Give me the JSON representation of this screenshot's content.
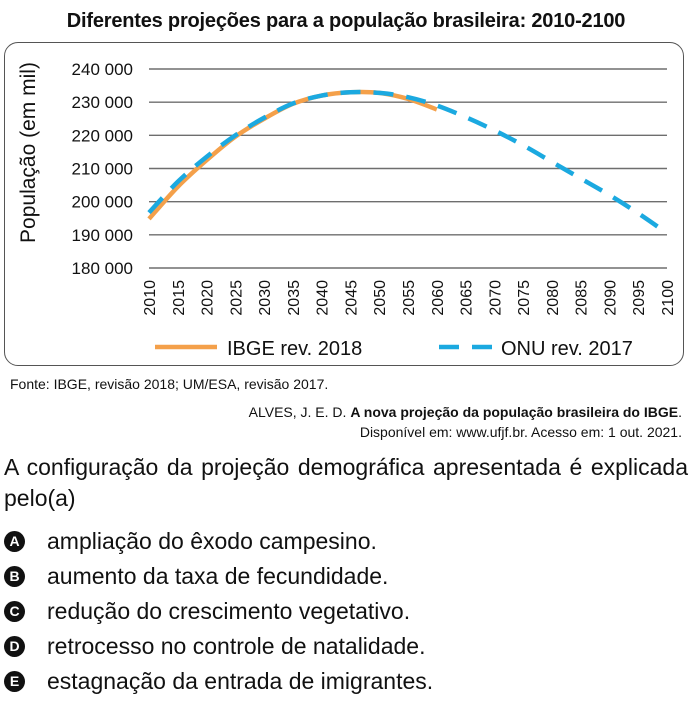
{
  "chart_data": {
    "type": "line",
    "title": "Diferentes projeções para a população brasileira: 2010-2100",
    "ylabel": "População (em mil)",
    "xlabel": "",
    "ylim": [
      180000,
      240000
    ],
    "yticks": [
      180000,
      190000,
      200000,
      210000,
      220000,
      230000,
      240000
    ],
    "ytick_labels": [
      "180 000",
      "190 000",
      "200 000",
      "210 000",
      "220 000",
      "230 000",
      "240 000"
    ],
    "xticks": [
      2010,
      2015,
      2020,
      2025,
      2030,
      2035,
      2040,
      2045,
      2050,
      2055,
      2060,
      2065,
      2070,
      2075,
      2080,
      2085,
      2090,
      2095,
      2100
    ],
    "grid": "horizontal",
    "legend_position": "bottom",
    "series": [
      {
        "name": "IBGE rev. 2018",
        "color": "#F4A04A",
        "style": "solid",
        "x": [
          2010,
          2015,
          2020,
          2025,
          2030,
          2035,
          2040,
          2045,
          2050,
          2055,
          2060
        ],
        "y": [
          194800,
          204500,
          212500,
          219600,
          225000,
          229500,
          232000,
          233000,
          232800,
          231000,
          227800
        ]
      },
      {
        "name": "ONU rev. 2017",
        "color": "#1BA9E0",
        "style": "dashed",
        "x": [
          2010,
          2015,
          2020,
          2025,
          2030,
          2035,
          2040,
          2045,
          2050,
          2055,
          2060,
          2065,
          2070,
          2075,
          2080,
          2085,
          2090,
          2095,
          2100
        ],
        "y": [
          196700,
          206000,
          213500,
          220000,
          225300,
          229600,
          232000,
          233000,
          232800,
          231500,
          229000,
          225500,
          221500,
          217000,
          212000,
          207000,
          202000,
          196500,
          190500
        ]
      }
    ]
  },
  "source": "Fonte: IBGE, revisão 2018; UM/ESA, revisão 2017.",
  "citation": {
    "author": "ALVES, J. E. D. ",
    "work": "A nova projeção da população brasileira do IBGE",
    "end": ".",
    "available": "Disponível em: www.ufjf.br. Acesso em: 1 out. 2021."
  },
  "question": "A configuração da projeção demográfica apresentada é explicada pelo(a)",
  "options": [
    {
      "letter": "A",
      "text": "ampliação do êxodo campesino."
    },
    {
      "letter": "B",
      "text": "aumento da taxa de fecundidade."
    },
    {
      "letter": "C",
      "text": "redução do crescimento vegetativo."
    },
    {
      "letter": "D",
      "text": "retrocesso no controle de natalidade."
    },
    {
      "letter": "E",
      "text": "estagnação da entrada de imigrantes."
    }
  ]
}
